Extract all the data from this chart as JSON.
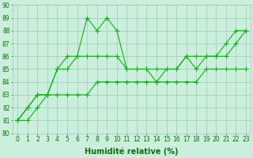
{
  "x": [
    0,
    1,
    2,
    3,
    4,
    5,
    6,
    7,
    8,
    9,
    10,
    11,
    12,
    13,
    14,
    15,
    16,
    17,
    18,
    19,
    20,
    21,
    22,
    23
  ],
  "line1": [
    81,
    82,
    83,
    83,
    85,
    86,
    86,
    89,
    88,
    89,
    88,
    85,
    85,
    85,
    84,
    85,
    85,
    86,
    85,
    86,
    86,
    87,
    88,
    88
  ],
  "line2": [
    81,
    82,
    83,
    83,
    85,
    85,
    86,
    86,
    86,
    86,
    86,
    85,
    85,
    85,
    85,
    85,
    85,
    86,
    86,
    86,
    86,
    86,
    87,
    88
  ],
  "line3": [
    81,
    81,
    82,
    83,
    83,
    83,
    83,
    83,
    84,
    84,
    84,
    84,
    84,
    84,
    84,
    84,
    84,
    84,
    84,
    85,
    85,
    85,
    85,
    85
  ],
  "line_color": "#00bb00",
  "bg_color": "#cceedd",
  "grid_color": "#99ccbb",
  "xlabel": "Humidité relative (%)",
  "ylim": [
    80,
    90
  ],
  "xlim": [
    -0.5,
    23.5
  ],
  "yticks": [
    80,
    81,
    82,
    83,
    84,
    85,
    86,
    87,
    88,
    89,
    90
  ],
  "xticks": [
    0,
    1,
    2,
    3,
    4,
    5,
    6,
    7,
    8,
    9,
    10,
    11,
    12,
    13,
    14,
    15,
    16,
    17,
    18,
    19,
    20,
    21,
    22,
    23
  ],
  "marker": "+",
  "markersize": 4,
  "linewidth": 0.8,
  "xlabel_fontsize": 7,
  "tick_fontsize": 5.5,
  "tick_color": "#007700",
  "xlabel_color": "#007700"
}
